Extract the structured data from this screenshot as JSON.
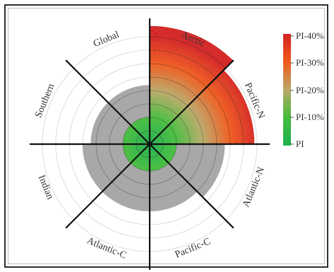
{
  "chart_data": {
    "type": "polar-area",
    "title": "",
    "categories": [
      "Arctic",
      "Pacific-N",
      "Atlantic-N",
      "Pacific-C",
      "Atlantic-C",
      "Indian",
      "Southern",
      "Global"
    ],
    "series": [
      {
        "values": [
          44,
          39,
          28,
          25,
          25,
          25,
          22,
          22
        ]
      }
    ],
    "rings": [
      5,
      10,
      15,
      20,
      25,
      30,
      35,
      40
    ],
    "legend": {
      "position": "right",
      "labels": [
        "PI-40%",
        "PI-30%",
        "PI-20%",
        "PI-10%",
        "PI"
      ],
      "stops": [
        {
          "value": 0,
          "color": "#1fb04f"
        },
        {
          "value": 10,
          "color": "#46bc3c"
        },
        {
          "value": 20,
          "color": "#b9a868"
        },
        {
          "value": 30,
          "color": "#ef5b1d"
        },
        {
          "value": 40,
          "color": "#d32222"
        }
      ]
    },
    "colors": {
      "overshoot": "#a8a8a8",
      "axis": "#111111",
      "ring": "#dcdcdc",
      "within": "#1fb04f"
    }
  }
}
